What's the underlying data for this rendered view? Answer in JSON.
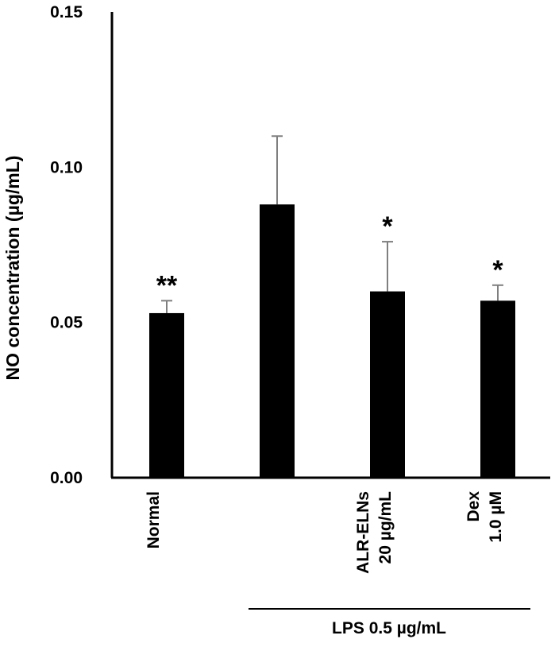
{
  "chart_data": {
    "type": "bar",
    "title": "",
    "ylabel": "NO concentration (µg/mL)",
    "xlabel": "",
    "ylim": [
      0,
      0.15
    ],
    "yticks": [
      "0.00",
      "0.05",
      "0.10",
      "0.15"
    ],
    "ytick_values": [
      0,
      0.05,
      0.1,
      0.15
    ],
    "grid": false,
    "bar_color": "#000000",
    "errorbar_color": "#7f7f7f",
    "categories": [
      {
        "lines": [
          "Normal"
        ]
      },
      {
        "lines": []
      },
      {
        "lines": [
          "ALR-ELNs",
          "20 µg/mL"
        ]
      },
      {
        "lines": [
          "Dex",
          "1.0 µM"
        ]
      }
    ],
    "values": [
      0.053,
      0.088,
      0.06,
      0.057
    ],
    "errors": [
      0.004,
      0.022,
      0.016,
      0.005
    ],
    "significance": [
      "**",
      "",
      "*",
      "*"
    ],
    "group_label": "LPS 0.5 µg/mL"
  }
}
